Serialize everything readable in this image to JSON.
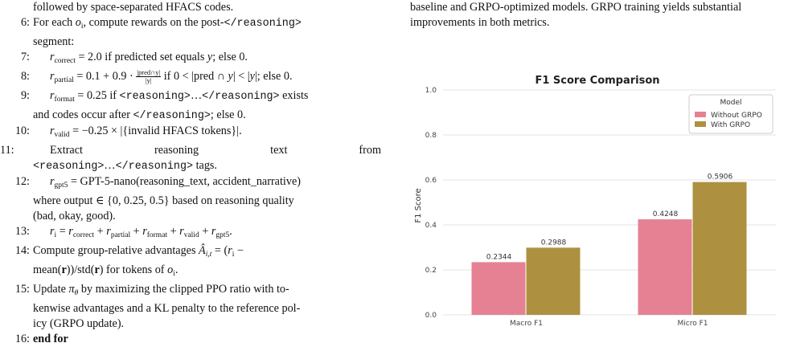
{
  "algorithm": {
    "lines": [
      {
        "n": "",
        "parts": [
          {
            "t": "followed by space-separated HFACS codes."
          }
        ]
      },
      {
        "n": "6:",
        "parts": [
          {
            "t": "For each "
          },
          {
            "t": "o",
            "i": true
          },
          {
            "t": "i",
            "sub": true
          },
          {
            "t": ", compute rewards on the post-"
          },
          {
            "t": "</reasoning>",
            "mono": true
          }
        ]
      },
      {
        "n": "",
        "parts": [
          {
            "t": "segment:"
          }
        ]
      },
      {
        "n": "7:",
        "ind": true,
        "parts": [
          {
            "t": "r",
            "i": true
          },
          {
            "t": "correct",
            "sub": true
          },
          {
            "t": " = 2.0 if predicted set equals "
          },
          {
            "t": "y",
            "i": true
          },
          {
            "t": "; else 0."
          }
        ]
      },
      {
        "n": "8:",
        "ind": true,
        "parts": [
          {
            "t": "r",
            "i": true
          },
          {
            "t": "partial",
            "sub": true
          },
          {
            "t": " = 0.1 + 0.9 · "
          },
          {
            "frac": [
              "|pred∩y|",
              "|y|"
            ]
          },
          {
            "t": " if 0 < |pred ∩ "
          },
          {
            "t": "y",
            "i": true
          },
          {
            "t": "| < |"
          },
          {
            "t": "y",
            "i": true
          },
          {
            "t": "|; else 0."
          }
        ]
      },
      {
        "n": "9:",
        "ind": true,
        "parts": [
          {
            "t": "r",
            "i": true
          },
          {
            "t": "format",
            "sub": true
          },
          {
            "t": " = 0.25 if "
          },
          {
            "t": "<reasoning>",
            "mono": true
          },
          {
            "t": "…"
          },
          {
            "t": "</reasoning>",
            "mono": true
          },
          {
            "t": " exists"
          }
        ]
      },
      {
        "n": "",
        "parts": [
          {
            "t": "and codes occur after "
          },
          {
            "t": "</reasoning>",
            "mono": true
          },
          {
            "t": "; else 0."
          }
        ]
      },
      {
        "n": "10:",
        "ind": true,
        "parts": [
          {
            "t": "r",
            "i": true
          },
          {
            "t": "valid",
            "sub": true
          },
          {
            "t": " = −0.25 × |{invalid HFACS tokens}|."
          }
        ]
      },
      {
        "n": "11:",
        "ind": true,
        "justify": true,
        "parts": [
          {
            "t": "Extract    reasoning    text    from"
          }
        ]
      },
      {
        "n": "",
        "parts": [
          {
            "t": "<reasoning>",
            "mono": true
          },
          {
            "t": "…"
          },
          {
            "t": "</reasoning>",
            "mono": true
          },
          {
            "t": " tags."
          }
        ]
      },
      {
        "n": "12:",
        "ind": true,
        "parts": [
          {
            "t": "r",
            "i": true
          },
          {
            "t": "gpt5",
            "sub": true
          },
          {
            "t": " = GPT-5-nano(reasoning_text, accident_narrative)"
          }
        ]
      },
      {
        "n": "",
        "parts": [
          {
            "t": "where output ∈ {0, 0.25, 0.5} based on reasoning quality"
          }
        ]
      },
      {
        "n": "",
        "parts": [
          {
            "t": "(bad, okay, good)."
          }
        ]
      },
      {
        "n": "13:",
        "ind": true,
        "parts": [
          {
            "t": "r",
            "i": true
          },
          {
            "t": "i",
            "sub": true
          },
          {
            "t": " = "
          },
          {
            "t": "r",
            "i": true
          },
          {
            "t": "correct",
            "sub": true
          },
          {
            "t": " + "
          },
          {
            "t": "r",
            "i": true
          },
          {
            "t": "partial",
            "sub": true
          },
          {
            "t": " + "
          },
          {
            "t": "r",
            "i": true
          },
          {
            "t": "format",
            "sub": true
          },
          {
            "t": " + "
          },
          {
            "t": "r",
            "i": true
          },
          {
            "t": "valid",
            "sub": true
          },
          {
            "t": " + "
          },
          {
            "t": "r",
            "i": true
          },
          {
            "t": "gpt5",
            "sub": true
          },
          {
            "t": "."
          }
        ]
      },
      {
        "n": "14:",
        "parts": [
          {
            "t": "Compute group-relative advantages "
          },
          {
            "t": "Â",
            "i": true
          },
          {
            "t": "i,t",
            "sub": true,
            "i": true
          },
          {
            "t": " = ("
          },
          {
            "t": "r",
            "i": true
          },
          {
            "t": "i",
            "sub": true
          },
          {
            "t": " −"
          }
        ]
      },
      {
        "n": "",
        "parts": [
          {
            "t": "mean("
          },
          {
            "t": "r",
            "b": true
          },
          {
            "t": "))/std("
          },
          {
            "t": "r",
            "b": true
          },
          {
            "t": ") for tokens of "
          },
          {
            "t": "o",
            "i": true
          },
          {
            "t": "i",
            "sub": true
          },
          {
            "t": "."
          }
        ]
      },
      {
        "n": "15:",
        "parts": [
          {
            "t": "Update "
          },
          {
            "t": "π",
            "i": true
          },
          {
            "t": "θ",
            "sub": true,
            "i": true
          },
          {
            "t": " by maximizing the clipped PPO ratio with to-"
          }
        ]
      },
      {
        "n": "",
        "parts": [
          {
            "t": "kenwise advantages and a KL penalty to the reference pol-"
          }
        ]
      },
      {
        "n": "",
        "parts": [
          {
            "t": "icy (GRPO update)."
          }
        ]
      },
      {
        "n": "16:",
        "parts": [
          {
            "t": "end for",
            "b": true
          }
        ]
      }
    ]
  },
  "caption": {
    "lines": [
      "baseline and GRPO-optimized models. GRPO training yields substantial",
      "improvements in both metrics."
    ]
  },
  "chart_data": {
    "type": "bar",
    "title": "F1 Score Comparison",
    "ylabel": "F1 Score",
    "xlabel": "",
    "categories": [
      "Macro F1",
      "Micro F1"
    ],
    "series": [
      {
        "name": "Without GRPO",
        "values": [
          0.2344,
          0.4248
        ],
        "color": "#e68193",
        "labels": [
          "0.2344",
          "0.4248"
        ]
      },
      {
        "name": "With GRPO",
        "values": [
          0.2988,
          0.5906
        ],
        "color": "#ad9140",
        "labels": [
          "0.2988",
          "0.5906"
        ]
      }
    ],
    "ylim": [
      0,
      1.0
    ],
    "yticks": [
      "0.0",
      "0.2",
      "0.4",
      "0.6",
      "0.8",
      "1.0"
    ],
    "ytick_values": [
      0,
      0.2,
      0.4,
      0.6,
      0.8,
      1.0
    ],
    "legend": {
      "title": "Model",
      "position": "top-right"
    },
    "grid": true
  }
}
